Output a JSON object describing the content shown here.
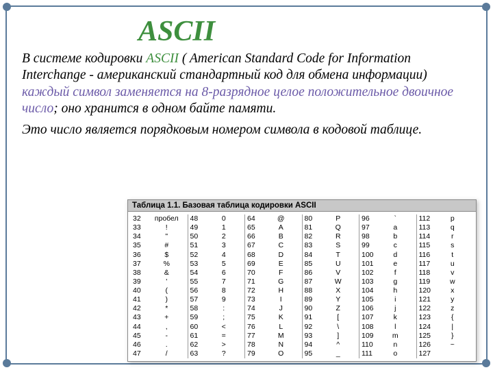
{
  "title": "ASCII",
  "para1_a": "В системе кодировки ",
  "para1_b": "ASCII",
  "para1_c": " ( American Standard Code for Information Interchange - американский стандартный код для обмена информации) ",
  "para1_d": "каждый символ заменяется на 8-разрядное целое положительное двоичное число",
  "para1_e": "; оно хранится в одном байте памяти.",
  "para2": " Это число является порядковым номером символа в кодовой таблице.",
  "table_title": "Таблица 1.1. Базовая таблица кодировки ASCII",
  "cols": [
    [
      {
        "c": "32",
        "v": "пробел"
      },
      {
        "c": "33",
        "v": "!"
      },
      {
        "c": "34",
        "v": "\""
      },
      {
        "c": "35",
        "v": "#"
      },
      {
        "c": "36",
        "v": "$"
      },
      {
        "c": "37",
        "v": "%"
      },
      {
        "c": "38",
        "v": "&"
      },
      {
        "c": "39",
        "v": "'"
      },
      {
        "c": "40",
        "v": "("
      },
      {
        "c": "41",
        "v": ")"
      },
      {
        "c": "42",
        "v": "*"
      },
      {
        "c": "43",
        "v": "+"
      },
      {
        "c": "44",
        "v": ","
      },
      {
        "c": "45",
        "v": "-"
      },
      {
        "c": "46",
        "v": "."
      },
      {
        "c": "47",
        "v": "/"
      }
    ],
    [
      {
        "c": "48",
        "v": "0"
      },
      {
        "c": "49",
        "v": "1"
      },
      {
        "c": "50",
        "v": "2"
      },
      {
        "c": "51",
        "v": "3"
      },
      {
        "c": "52",
        "v": "4"
      },
      {
        "c": "53",
        "v": "5"
      },
      {
        "c": "54",
        "v": "6"
      },
      {
        "c": "55",
        "v": "7"
      },
      {
        "c": "56",
        "v": "8"
      },
      {
        "c": "57",
        "v": "9"
      },
      {
        "c": "58",
        "v": ":"
      },
      {
        "c": "59",
        "v": ";"
      },
      {
        "c": "60",
        "v": "<"
      },
      {
        "c": "61",
        "v": "="
      },
      {
        "c": "62",
        "v": ">"
      },
      {
        "c": "63",
        "v": "?"
      }
    ],
    [
      {
        "c": "64",
        "v": "@"
      },
      {
        "c": "65",
        "v": "A"
      },
      {
        "c": "66",
        "v": "B"
      },
      {
        "c": "67",
        "v": "C"
      },
      {
        "c": "68",
        "v": "D"
      },
      {
        "c": "69",
        "v": "E"
      },
      {
        "c": "70",
        "v": "F"
      },
      {
        "c": "71",
        "v": "G"
      },
      {
        "c": "72",
        "v": "H"
      },
      {
        "c": "73",
        "v": "I"
      },
      {
        "c": "74",
        "v": "J"
      },
      {
        "c": "75",
        "v": "K"
      },
      {
        "c": "76",
        "v": "L"
      },
      {
        "c": "77",
        "v": "M"
      },
      {
        "c": "78",
        "v": "N"
      },
      {
        "c": "79",
        "v": "O"
      }
    ],
    [
      {
        "c": "80",
        "v": "P"
      },
      {
        "c": "81",
        "v": "Q"
      },
      {
        "c": "82",
        "v": "R"
      },
      {
        "c": "83",
        "v": "S"
      },
      {
        "c": "84",
        "v": "T"
      },
      {
        "c": "85",
        "v": "U"
      },
      {
        "c": "86",
        "v": "V"
      },
      {
        "c": "87",
        "v": "W"
      },
      {
        "c": "88",
        "v": "X"
      },
      {
        "c": "89",
        "v": "Y"
      },
      {
        "c": "90",
        "v": "Z"
      },
      {
        "c": "91",
        "v": "["
      },
      {
        "c": "92",
        "v": "\\"
      },
      {
        "c": "93",
        "v": "]"
      },
      {
        "c": "94",
        "v": "^"
      },
      {
        "c": "95",
        "v": "_"
      }
    ],
    [
      {
        "c": "96",
        "v": "`"
      },
      {
        "c": "97",
        "v": "a"
      },
      {
        "c": "98",
        "v": "b"
      },
      {
        "c": "99",
        "v": "c"
      },
      {
        "c": "100",
        "v": "d"
      },
      {
        "c": "101",
        "v": "e"
      },
      {
        "c": "102",
        "v": "f"
      },
      {
        "c": "103",
        "v": "g"
      },
      {
        "c": "104",
        "v": "h"
      },
      {
        "c": "105",
        "v": "i"
      },
      {
        "c": "106",
        "v": "j"
      },
      {
        "c": "107",
        "v": "k"
      },
      {
        "c": "108",
        "v": "l"
      },
      {
        "c": "109",
        "v": "m"
      },
      {
        "c": "110",
        "v": "n"
      },
      {
        "c": "111",
        "v": "o"
      }
    ],
    [
      {
        "c": "112",
        "v": "p"
      },
      {
        "c": "113",
        "v": "q"
      },
      {
        "c": "114",
        "v": "r"
      },
      {
        "c": "115",
        "v": "s"
      },
      {
        "c": "116",
        "v": "t"
      },
      {
        "c": "117",
        "v": "u"
      },
      {
        "c": "118",
        "v": "v"
      },
      {
        "c": "119",
        "v": "w"
      },
      {
        "c": "120",
        "v": "x"
      },
      {
        "c": "121",
        "v": "y"
      },
      {
        "c": "122",
        "v": "z"
      },
      {
        "c": "123",
        "v": "{"
      },
      {
        "c": "124",
        "v": "|"
      },
      {
        "c": "125",
        "v": "}"
      },
      {
        "c": "126",
        "v": "~"
      },
      {
        "c": "127",
        "v": ""
      }
    ]
  ]
}
